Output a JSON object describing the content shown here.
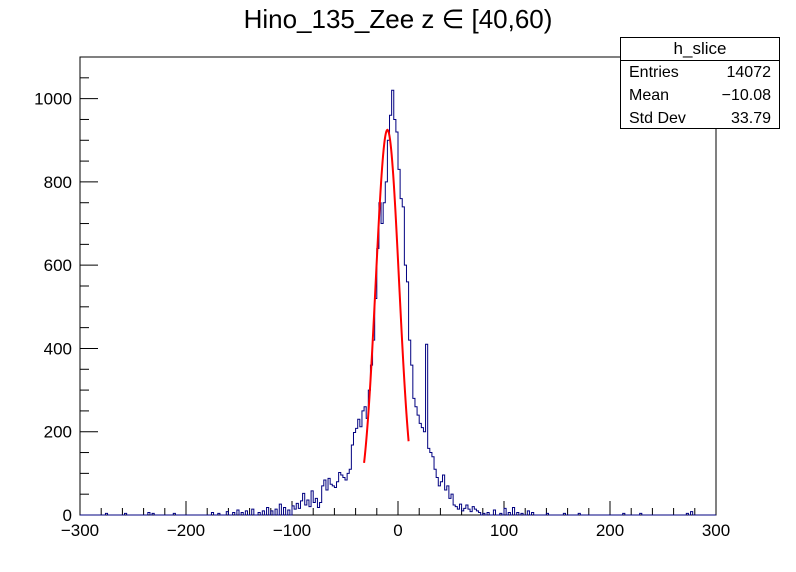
{
  "title": "Hino_135_Zee z  ∈ [40,60)",
  "stats": {
    "name": "h_slice",
    "rows": [
      {
        "label": "Entries",
        "value": "14072"
      },
      {
        "label": "Mean",
        "value": "−10.08"
      },
      {
        "label": "Std Dev",
        "value": "33.79"
      }
    ]
  },
  "colors": {
    "histogram": "#000080",
    "fit": "#ff0000",
    "axis": "#000000"
  },
  "chart_data": {
    "type": "histogram",
    "xlim": [
      -300,
      300
    ],
    "ylim": [
      0,
      1100
    ],
    "x_ticks": [
      "−300",
      "−200",
      "−100",
      "0",
      "100",
      "200",
      "300"
    ],
    "y_ticks": [
      "0",
      "200",
      "400",
      "600",
      "800",
      "1000"
    ],
    "bin_width": 2,
    "bins": [
      [
        -276,
        4
      ],
      [
        -258,
        4
      ],
      [
        -236,
        6
      ],
      [
        -232,
        4
      ],
      [
        -212,
        4
      ],
      [
        -176,
        6
      ],
      [
        -170,
        4
      ],
      [
        -162,
        8
      ],
      [
        -156,
        6
      ],
      [
        -152,
        12
      ],
      [
        -148,
        6
      ],
      [
        -144,
        10
      ],
      [
        -138,
        14
      ],
      [
        -132,
        6
      ],
      [
        -128,
        10
      ],
      [
        -124,
        18
      ],
      [
        -120,
        10
      ],
      [
        -116,
        14
      ],
      [
        -112,
        26
      ],
      [
        -108,
        18
      ],
      [
        -104,
        12
      ],
      [
        -100,
        22
      ],
      [
        -98,
        14
      ],
      [
        -96,
        28
      ],
      [
        -94,
        16
      ],
      [
        -92,
        34
      ],
      [
        -90,
        52
      ],
      [
        -88,
        24
      ],
      [
        -86,
        36
      ],
      [
        -84,
        20
      ],
      [
        -82,
        58
      ],
      [
        -80,
        30
      ],
      [
        -78,
        40
      ],
      [
        -76,
        18
      ],
      [
        -74,
        30
      ],
      [
        -72,
        70
      ],
      [
        -70,
        84
      ],
      [
        -68,
        60
      ],
      [
        -66,
        88
      ],
      [
        -64,
        74
      ],
      [
        -62,
        70
      ],
      [
        -60,
        66
      ],
      [
        -58,
        80
      ],
      [
        -56,
        102
      ],
      [
        -54,
        96
      ],
      [
        -52,
        90
      ],
      [
        -50,
        84
      ],
      [
        -48,
        100
      ],
      [
        -46,
        110
      ],
      [
        -44,
        168
      ],
      [
        -42,
        198
      ],
      [
        -40,
        208
      ],
      [
        -38,
        230
      ],
      [
        -36,
        212
      ],
      [
        -34,
        250
      ],
      [
        -32,
        260
      ],
      [
        -30,
        232
      ],
      [
        -28,
        300
      ],
      [
        -26,
        360
      ],
      [
        -24,
        420
      ],
      [
        -22,
        520
      ],
      [
        -20,
        640
      ],
      [
        -18,
        750
      ],
      [
        -16,
        700
      ],
      [
        -14,
        750
      ],
      [
        -12,
        800
      ],
      [
        -10,
        900
      ],
      [
        -8,
        960
      ],
      [
        -6,
        1020
      ],
      [
        -4,
        950
      ],
      [
        -2,
        920
      ],
      [
        0,
        830
      ],
      [
        2,
        760
      ],
      [
        4,
        740
      ],
      [
        6,
        600
      ],
      [
        8,
        560
      ],
      [
        10,
        420
      ],
      [
        12,
        360
      ],
      [
        14,
        280
      ],
      [
        16,
        260
      ],
      [
        18,
        240
      ],
      [
        20,
        220
      ],
      [
        22,
        210
      ],
      [
        24,
        200
      ],
      [
        26,
        410
      ],
      [
        28,
        160
      ],
      [
        30,
        150
      ],
      [
        32,
        140
      ],
      [
        34,
        110
      ],
      [
        36,
        90
      ],
      [
        38,
        70
      ],
      [
        40,
        80
      ],
      [
        42,
        96
      ],
      [
        44,
        60
      ],
      [
        46,
        70
      ],
      [
        48,
        40
      ],
      [
        50,
        50
      ],
      [
        52,
        24
      ],
      [
        54,
        20
      ],
      [
        56,
        14
      ],
      [
        58,
        26
      ],
      [
        60,
        10
      ],
      [
        62,
        16
      ],
      [
        64,
        24
      ],
      [
        66,
        14
      ],
      [
        68,
        8
      ],
      [
        70,
        20
      ],
      [
        72,
        14
      ],
      [
        74,
        10
      ],
      [
        76,
        6
      ],
      [
        80,
        4
      ],
      [
        84,
        6
      ],
      [
        90,
        12
      ],
      [
        96,
        4
      ],
      [
        100,
        16
      ],
      [
        104,
        6
      ],
      [
        108,
        18
      ],
      [
        112,
        6
      ],
      [
        116,
        4
      ],
      [
        122,
        10
      ],
      [
        126,
        6
      ],
      [
        140,
        4
      ],
      [
        156,
        4
      ],
      [
        170,
        4
      ],
      [
        212,
        4
      ],
      [
        228,
        4
      ],
      [
        272,
        4
      ],
      [
        276,
        8
      ]
    ],
    "fit": {
      "type": "gaussian",
      "amplitude": 925,
      "mean": -10,
      "sigma": 11,
      "range": [
        -32,
        10
      ]
    }
  }
}
